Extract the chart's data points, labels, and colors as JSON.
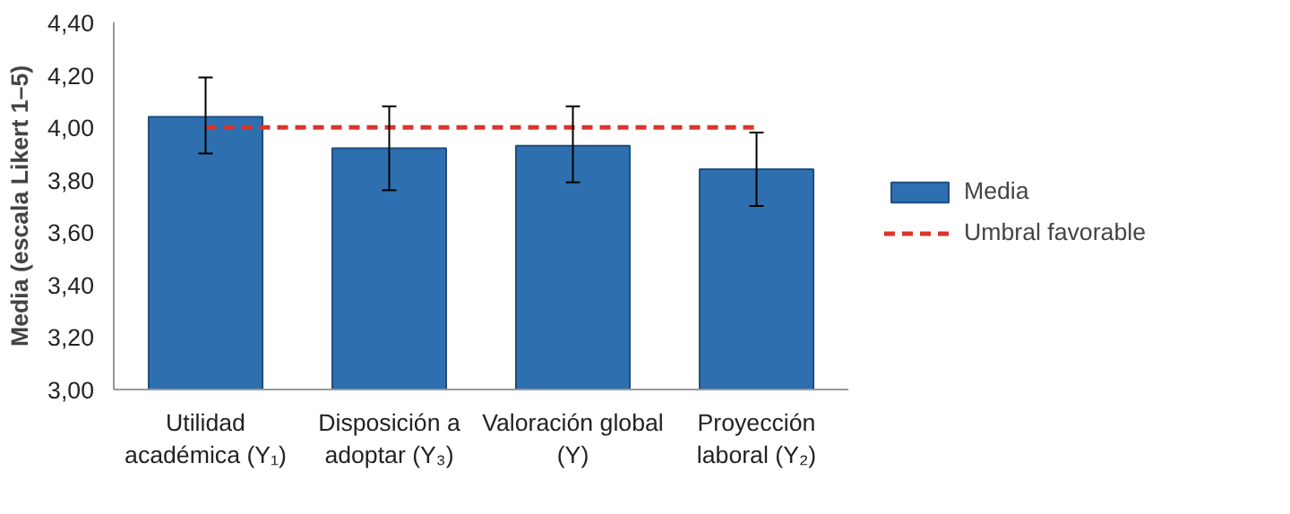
{
  "chart_data": {
    "type": "bar",
    "ylabel": "Media (escala Likert 1–5)",
    "categories": [
      "Utilidad\nacadémica (Y₁)",
      "Disposición a\nadoptar (Y₃)",
      "Valoración global\n(Y)",
      "Proyección\nlaboral (Y₂)"
    ],
    "series": [
      {
        "name": "Media",
        "color": "#2e6fb0",
        "values": [
          4.04,
          3.92,
          3.93,
          3.84
        ],
        "errors": [
          [
            3.9,
            4.19
          ],
          [
            3.76,
            4.08
          ],
          [
            3.79,
            4.08
          ],
          [
            3.7,
            3.98
          ]
        ]
      },
      {
        "name": "Umbral favorable",
        "type": "line",
        "color": "#d9352a",
        "line_style": "dashed",
        "values": [
          4.0,
          4.0,
          4.0,
          4.0
        ]
      }
    ],
    "ylim": [
      3.0,
      4.4
    ],
    "yticks": [
      {
        "value": 3.0,
        "label": "3,00"
      },
      {
        "value": 3.2,
        "label": "3,20"
      },
      {
        "value": 3.4,
        "label": "3,40"
      },
      {
        "value": 3.6,
        "label": "3,60"
      },
      {
        "value": 3.8,
        "label": "3,80"
      },
      {
        "value": 4.0,
        "label": "4,00"
      },
      {
        "value": 4.2,
        "label": "4,20"
      },
      {
        "value": 4.4,
        "label": "4,40"
      }
    ],
    "grid": false,
    "legend": "right"
  }
}
